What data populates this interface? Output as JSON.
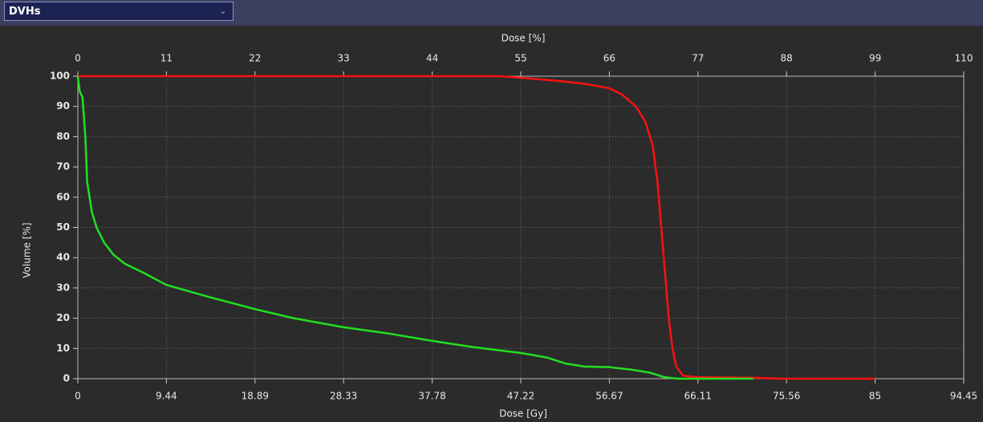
{
  "header": {
    "dropdown": "DVHs"
  },
  "chart_data": {
    "type": "line",
    "xlabel": "Dose [Gy]",
    "ylabel": "Volume [%]",
    "x2label": "Dose [%]",
    "xlim": [
      0,
      94.45
    ],
    "xticks": [
      0,
      9.44,
      18.89,
      28.33,
      37.78,
      47.22,
      56.67,
      66.11,
      75.56,
      85,
      94.45
    ],
    "x2lim": [
      0,
      110
    ],
    "x2ticks": [
      0,
      11,
      22,
      33,
      44,
      55,
      66,
      77,
      88,
      99,
      110
    ],
    "ylim": [
      0,
      100
    ],
    "yticks": [
      0,
      10,
      20,
      30,
      40,
      50,
      60,
      70,
      80,
      90,
      100
    ],
    "grid": true,
    "series": [
      {
        "color": "#ff1010",
        "x": [
          0,
          45,
          47.22,
          51,
          54,
          56.67,
          58,
          59.5,
          60.5,
          61.3,
          61.8,
          62.2,
          62.6,
          63,
          63.4,
          63.8,
          64.5,
          66,
          72,
          75,
          85
        ],
        "values": [
          100,
          100,
          99.5,
          98.5,
          97.5,
          96,
          94,
          90,
          85,
          77,
          65,
          50,
          35,
          20,
          10,
          4,
          1,
          0.5,
          0.3,
          0,
          0
        ]
      },
      {
        "color": "#22e022",
        "x": [
          0,
          0.2,
          0.5,
          0.8,
          1.0,
          1.5,
          2.0,
          2.8,
          3.8,
          5.0,
          7.0,
          9.44,
          14,
          18.89,
          23,
          28.33,
          33,
          37.78,
          42,
          47.22,
          50,
          52,
          54,
          56.67,
          59,
          61,
          62.5,
          64,
          72
        ],
        "values": [
          100,
          95,
          93,
          80,
          65,
          55,
          50,
          45,
          41,
          38,
          35,
          31,
          27,
          23,
          20,
          17,
          15,
          12.5,
          10.5,
          8.5,
          7,
          5,
          4,
          3.8,
          3,
          2,
          0.5,
          0,
          0
        ]
      }
    ]
  }
}
